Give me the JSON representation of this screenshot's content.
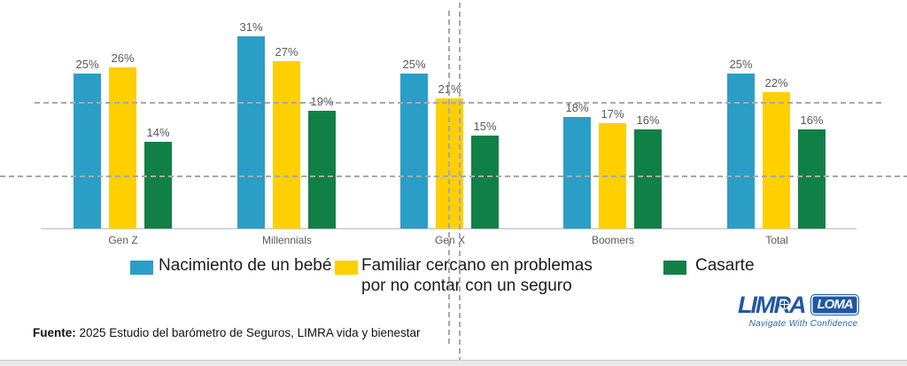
{
  "chart_data": {
    "type": "bar",
    "categories": [
      "Gen Z",
      "Millennials",
      "Gen X",
      "Boomers",
      "Total"
    ],
    "series": [
      {
        "name": "Nacimiento de un bebé",
        "color": "#2B9EC7",
        "values": [
          25,
          31,
          25,
          18,
          25
        ]
      },
      {
        "name": "Familiar cercano en problemas por no contar con un seguro",
        "color": "#FFCF00",
        "values": [
          26,
          27,
          21,
          17,
          22
        ]
      },
      {
        "name": "Casarte",
        "color": "#118047",
        "values": [
          14,
          19,
          15,
          16,
          16
        ]
      }
    ],
    "value_suffix": "%",
    "title": "",
    "xlabel": "",
    "ylabel": "",
    "ylim": [
      0,
      35
    ],
    "grid": false,
    "legend_position": "bottom",
    "data_labels": true
  },
  "legend": {
    "items": [
      {
        "label_line1": "Nacimiento de un bebé",
        "label_line2": ""
      },
      {
        "label_line1": "Familiar cercano en problemas",
        "label_line2": "por no contar con un seguro"
      },
      {
        "label_line1": "Casarte",
        "label_line2": ""
      }
    ]
  },
  "source": {
    "prefix": "Fuente:",
    "text": " 2025 Estudio del barómetro de Seguros, LIMRA vida y bienestar"
  },
  "logo": {
    "limra": "LIMRA",
    "loma": "LOMA",
    "tagline": "Navigate With Confidence",
    "brand_color": "#2157A5"
  },
  "colors": {
    "value_label": "#595959",
    "category_label": "#595959",
    "axis_line": "#d6d6d6",
    "guide": "#a8a8a8"
  }
}
